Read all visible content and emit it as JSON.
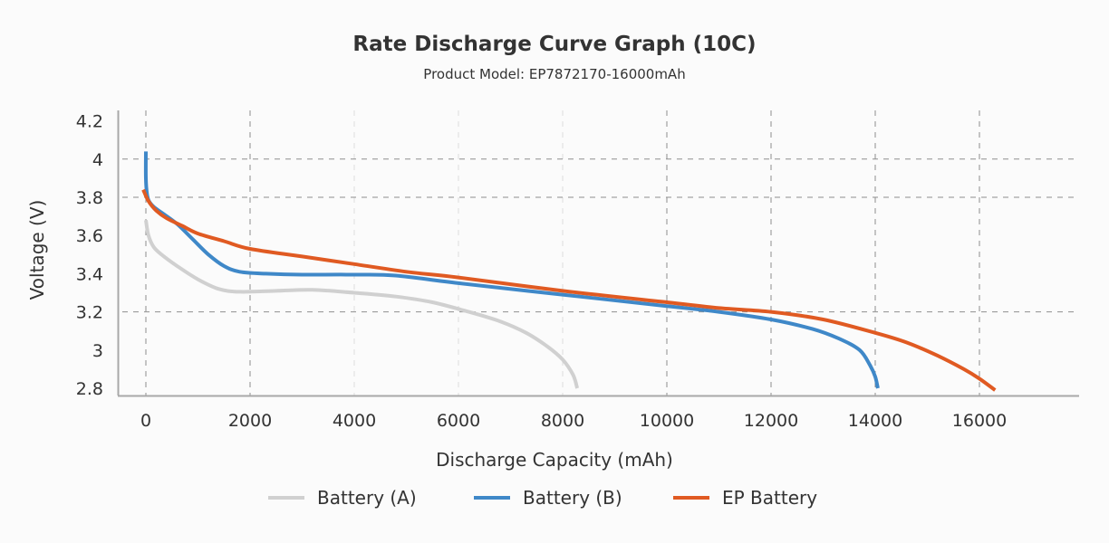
{
  "chart_data": {
    "type": "line",
    "title": "Rate Discharge Curve Graph (10C)",
    "subtitle": "Product Model: EP7872170-16000mAh",
    "xlabel": "Discharge Capacity (mAh)",
    "ylabel": "Voltage (V)",
    "xlim": [
      -500,
      17900
    ],
    "ylim": [
      2.78,
      4.22
    ],
    "x_ticks": [
      0,
      2000,
      4000,
      6000,
      8000,
      10000,
      12000,
      14000,
      16000
    ],
    "x_tick_labels": [
      "0",
      "2000",
      "4000",
      "6000",
      "8000",
      "10000",
      "12000",
      "14000",
      "16000"
    ],
    "y_ticks": [
      4.2,
      4.0,
      3.8,
      3.6,
      3.4,
      3.2,
      3.0,
      2.8
    ],
    "y_tick_labels": [
      "4.2",
      "4",
      "3.8",
      "3.6",
      "3.4",
      "3.2",
      "3",
      "2.8"
    ],
    "h_grid": [
      4.0,
      3.8,
      3.2
    ],
    "v_grid_dark": [
      0,
      2000,
      10000,
      12000,
      14000,
      16000
    ],
    "v_grid_light": [
      4000,
      6000,
      8000
    ],
    "legend_position": "bottom",
    "series": [
      {
        "name": "Battery (A)",
        "color": "#d0d0d0",
        "x": [
          0,
          50,
          150,
          300,
          600,
          1000,
          1400,
          1800,
          2500,
          3200,
          4000,
          4800,
          5500,
          6200,
          6800,
          7300,
          7700,
          8000,
          8200,
          8280
        ],
        "y": [
          3.68,
          3.6,
          3.54,
          3.5,
          3.44,
          3.37,
          3.32,
          3.305,
          3.31,
          3.315,
          3.3,
          3.28,
          3.25,
          3.2,
          3.15,
          3.09,
          3.02,
          2.95,
          2.87,
          2.8
        ]
      },
      {
        "name": "Battery (B)",
        "color": "#3f88c8",
        "x": [
          0,
          0,
          20,
          60,
          150,
          300,
          600,
          900,
          1200,
          1500,
          1800,
          2300,
          3000,
          4000,
          4800,
          6000,
          8000,
          10000,
          11000,
          12000,
          12800,
          13300,
          13700,
          13900,
          14000,
          14050
        ],
        "y": [
          4.04,
          3.9,
          3.82,
          3.78,
          3.75,
          3.72,
          3.66,
          3.58,
          3.5,
          3.44,
          3.41,
          3.4,
          3.395,
          3.395,
          3.39,
          3.35,
          3.29,
          3.23,
          3.2,
          3.16,
          3.11,
          3.06,
          3.0,
          2.92,
          2.86,
          2.8
        ]
      },
      {
        "name": "EP Battery",
        "color": "#e05a22",
        "x": [
          -50,
          50,
          200,
          400,
          700,
          1000,
          1500,
          2000,
          3000,
          4000,
          5000,
          6000,
          8000,
          10000,
          11000,
          12000,
          13000,
          14000,
          14600,
          15200,
          15700,
          16000,
          16300
        ],
        "y": [
          3.84,
          3.78,
          3.73,
          3.69,
          3.65,
          3.61,
          3.57,
          3.53,
          3.49,
          3.45,
          3.41,
          3.38,
          3.31,
          3.25,
          3.22,
          3.2,
          3.16,
          3.09,
          3.04,
          2.97,
          2.9,
          2.85,
          2.79
        ]
      }
    ]
  }
}
